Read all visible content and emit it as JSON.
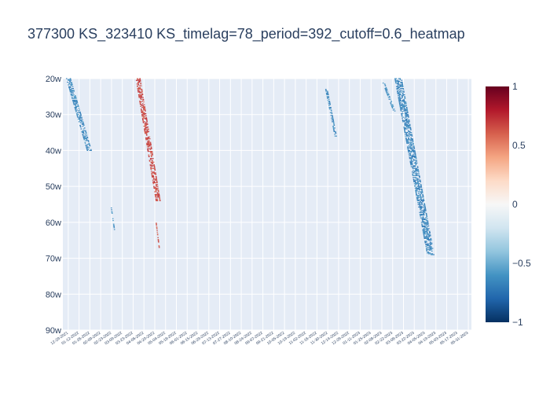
{
  "chart_data": {
    "type": "heatmap",
    "title": "377300 KS_323410 KS_timelag=78_period=392_cutoff=0.6_heatmap",
    "xlabel": "",
    "ylabel": "",
    "y_categories": [
      "20w",
      "30w",
      "40w",
      "50w",
      "60w",
      "70w",
      "80w",
      "90w"
    ],
    "x_tick_labels": [
      "12-29-2021",
      "01-12-2022",
      "01-26-2022",
      "02-09-2022",
      "02-23-2022",
      "03-09-2022",
      "03-23-2022",
      "04-06-2022",
      "04-20-2022",
      "05-04-2022",
      "05-18-2022",
      "06-01-2022",
      "06-15-2022",
      "06-29-2022",
      "07-13-2022",
      "07-27-2022",
      "08-10-2022",
      "08-24-2022",
      "09-07-2022",
      "09-21-2022",
      "10-05-2022",
      "10-19-2022",
      "11-02-2022",
      "11-16-2022",
      "11-30-2022",
      "12-14-2022",
      "12-28-2022",
      "01-11-2023",
      "01-25-2023",
      "02-08-2023",
      "02-22-2023",
      "03-08-2023",
      "03-22-2023",
      "04-05-2023",
      "04-19-2023",
      "05-03-2023",
      "05-17-2023",
      "05-31-2023"
    ],
    "colorscale": "RdBu",
    "zmin": -1,
    "zmax": 1,
    "colorbar_ticks": [
      "1",
      "0.5",
      "0",
      "−0.5",
      "−1"
    ],
    "colorbar_tick_values": [
      1,
      0.5,
      0,
      -0.5,
      -1
    ],
    "cutoff": 0.6,
    "grid": true,
    "clusters": [
      {
        "x_start": "12-29-2021",
        "x_end": "01-25-2022",
        "y_start": 20,
        "y_end": 40,
        "value": -0.65
      },
      {
        "x_start": "02-23-2022",
        "x_end": "02-27-2022",
        "y_start": 56,
        "y_end": 62,
        "value": -0.62
      },
      {
        "x_start": "03-29-2022",
        "x_end": "04-24-2022",
        "y_start": 20,
        "y_end": 54,
        "value": 0.67
      },
      {
        "x_start": "04-22-2022",
        "x_end": "04-26-2022",
        "y_start": 60,
        "y_end": 67,
        "value": 0.62
      },
      {
        "x_start": "11-28-2022",
        "x_end": "12-10-2022",
        "y_start": 23,
        "y_end": 36,
        "value": -0.64
      },
      {
        "x_start": "02-10-2023",
        "x_end": "02-24-2023",
        "y_start": 21,
        "y_end": 29,
        "value": -0.62
      },
      {
        "x_start": "03-01-2023",
        "x_end": "04-12-2023",
        "y_start": 20,
        "y_end": 69,
        "value": -0.66
      }
    ]
  }
}
